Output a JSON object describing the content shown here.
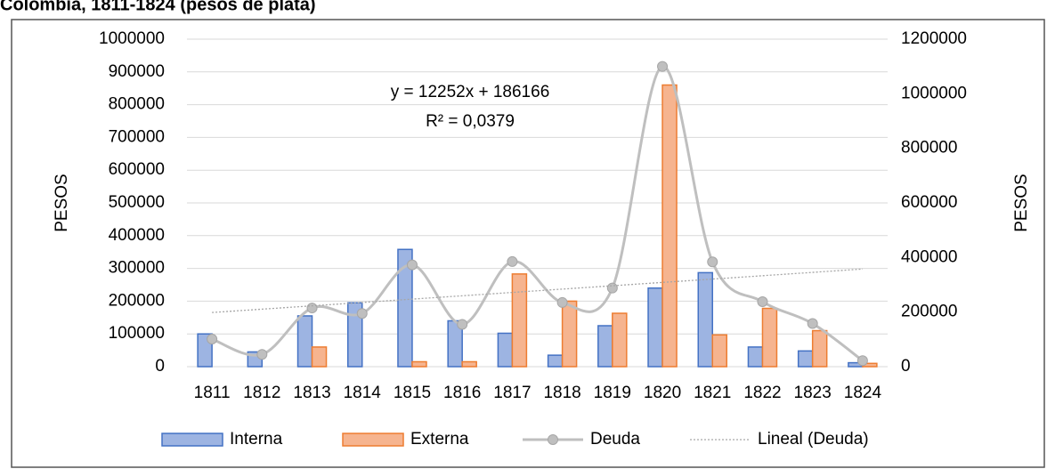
{
  "chart_data": {
    "type": "bar",
    "title": "Colombia, 1811-1824 (pesos de plata)",
    "categories": [
      "1811",
      "1812",
      "1813",
      "1814",
      "1815",
      "1816",
      "1817",
      "1818",
      "1819",
      "1820",
      "1821",
      "1822",
      "1823",
      "1824"
    ],
    "series": [
      {
        "name": "Interna",
        "type": "bar",
        "color": "#4472c4",
        "fill": "#9db4e2",
        "values": [
          100000,
          45000,
          155000,
          195000,
          358000,
          140000,
          102000,
          35000,
          125000,
          240000,
          287000,
          60000,
          48000,
          12000
        ]
      },
      {
        "name": "Externa",
        "type": "bar",
        "color": "#ed7d31",
        "fill": "#f6b48f",
        "values": [
          0,
          0,
          60000,
          0,
          15000,
          15000,
          283000,
          200000,
          163000,
          860000,
          97000,
          178000,
          110000,
          10000
        ]
      },
      {
        "name": "Deuda",
        "type": "line",
        "axis": "y2",
        "color": "#bfbfbf",
        "marker": true,
        "smooth": true,
        "values": [
          101000,
          45000,
          215000,
          195000,
          373000,
          155000,
          385000,
          235000,
          288000,
          1100000,
          384000,
          238000,
          158000,
          22000
        ]
      },
      {
        "name": "Lineal (Deuda)",
        "type": "line",
        "axis": "y2",
        "color": "#a6a6a6",
        "dotted": true,
        "values": [
          198418,
          210670,
          222922,
          235174,
          247426,
          259678,
          271930,
          284182,
          296434,
          308686,
          320938,
          333190,
          345442,
          357694
        ]
      }
    ],
    "annotation": [
      "y = 12252x + 186166",
      "R² = 0,0379"
    ],
    "ylabel": "PESOS",
    "y2label": "PESOS",
    "ylim": [
      0,
      1000000
    ],
    "yticks": [
      0,
      100000,
      200000,
      300000,
      400000,
      500000,
      600000,
      700000,
      800000,
      900000,
      1000000
    ],
    "y2lim": [
      0,
      1200000
    ],
    "y2ticks": [
      0,
      200000,
      400000,
      600000,
      800000,
      1000000,
      1200000
    ],
    "grid": true,
    "legend": "bottom"
  }
}
